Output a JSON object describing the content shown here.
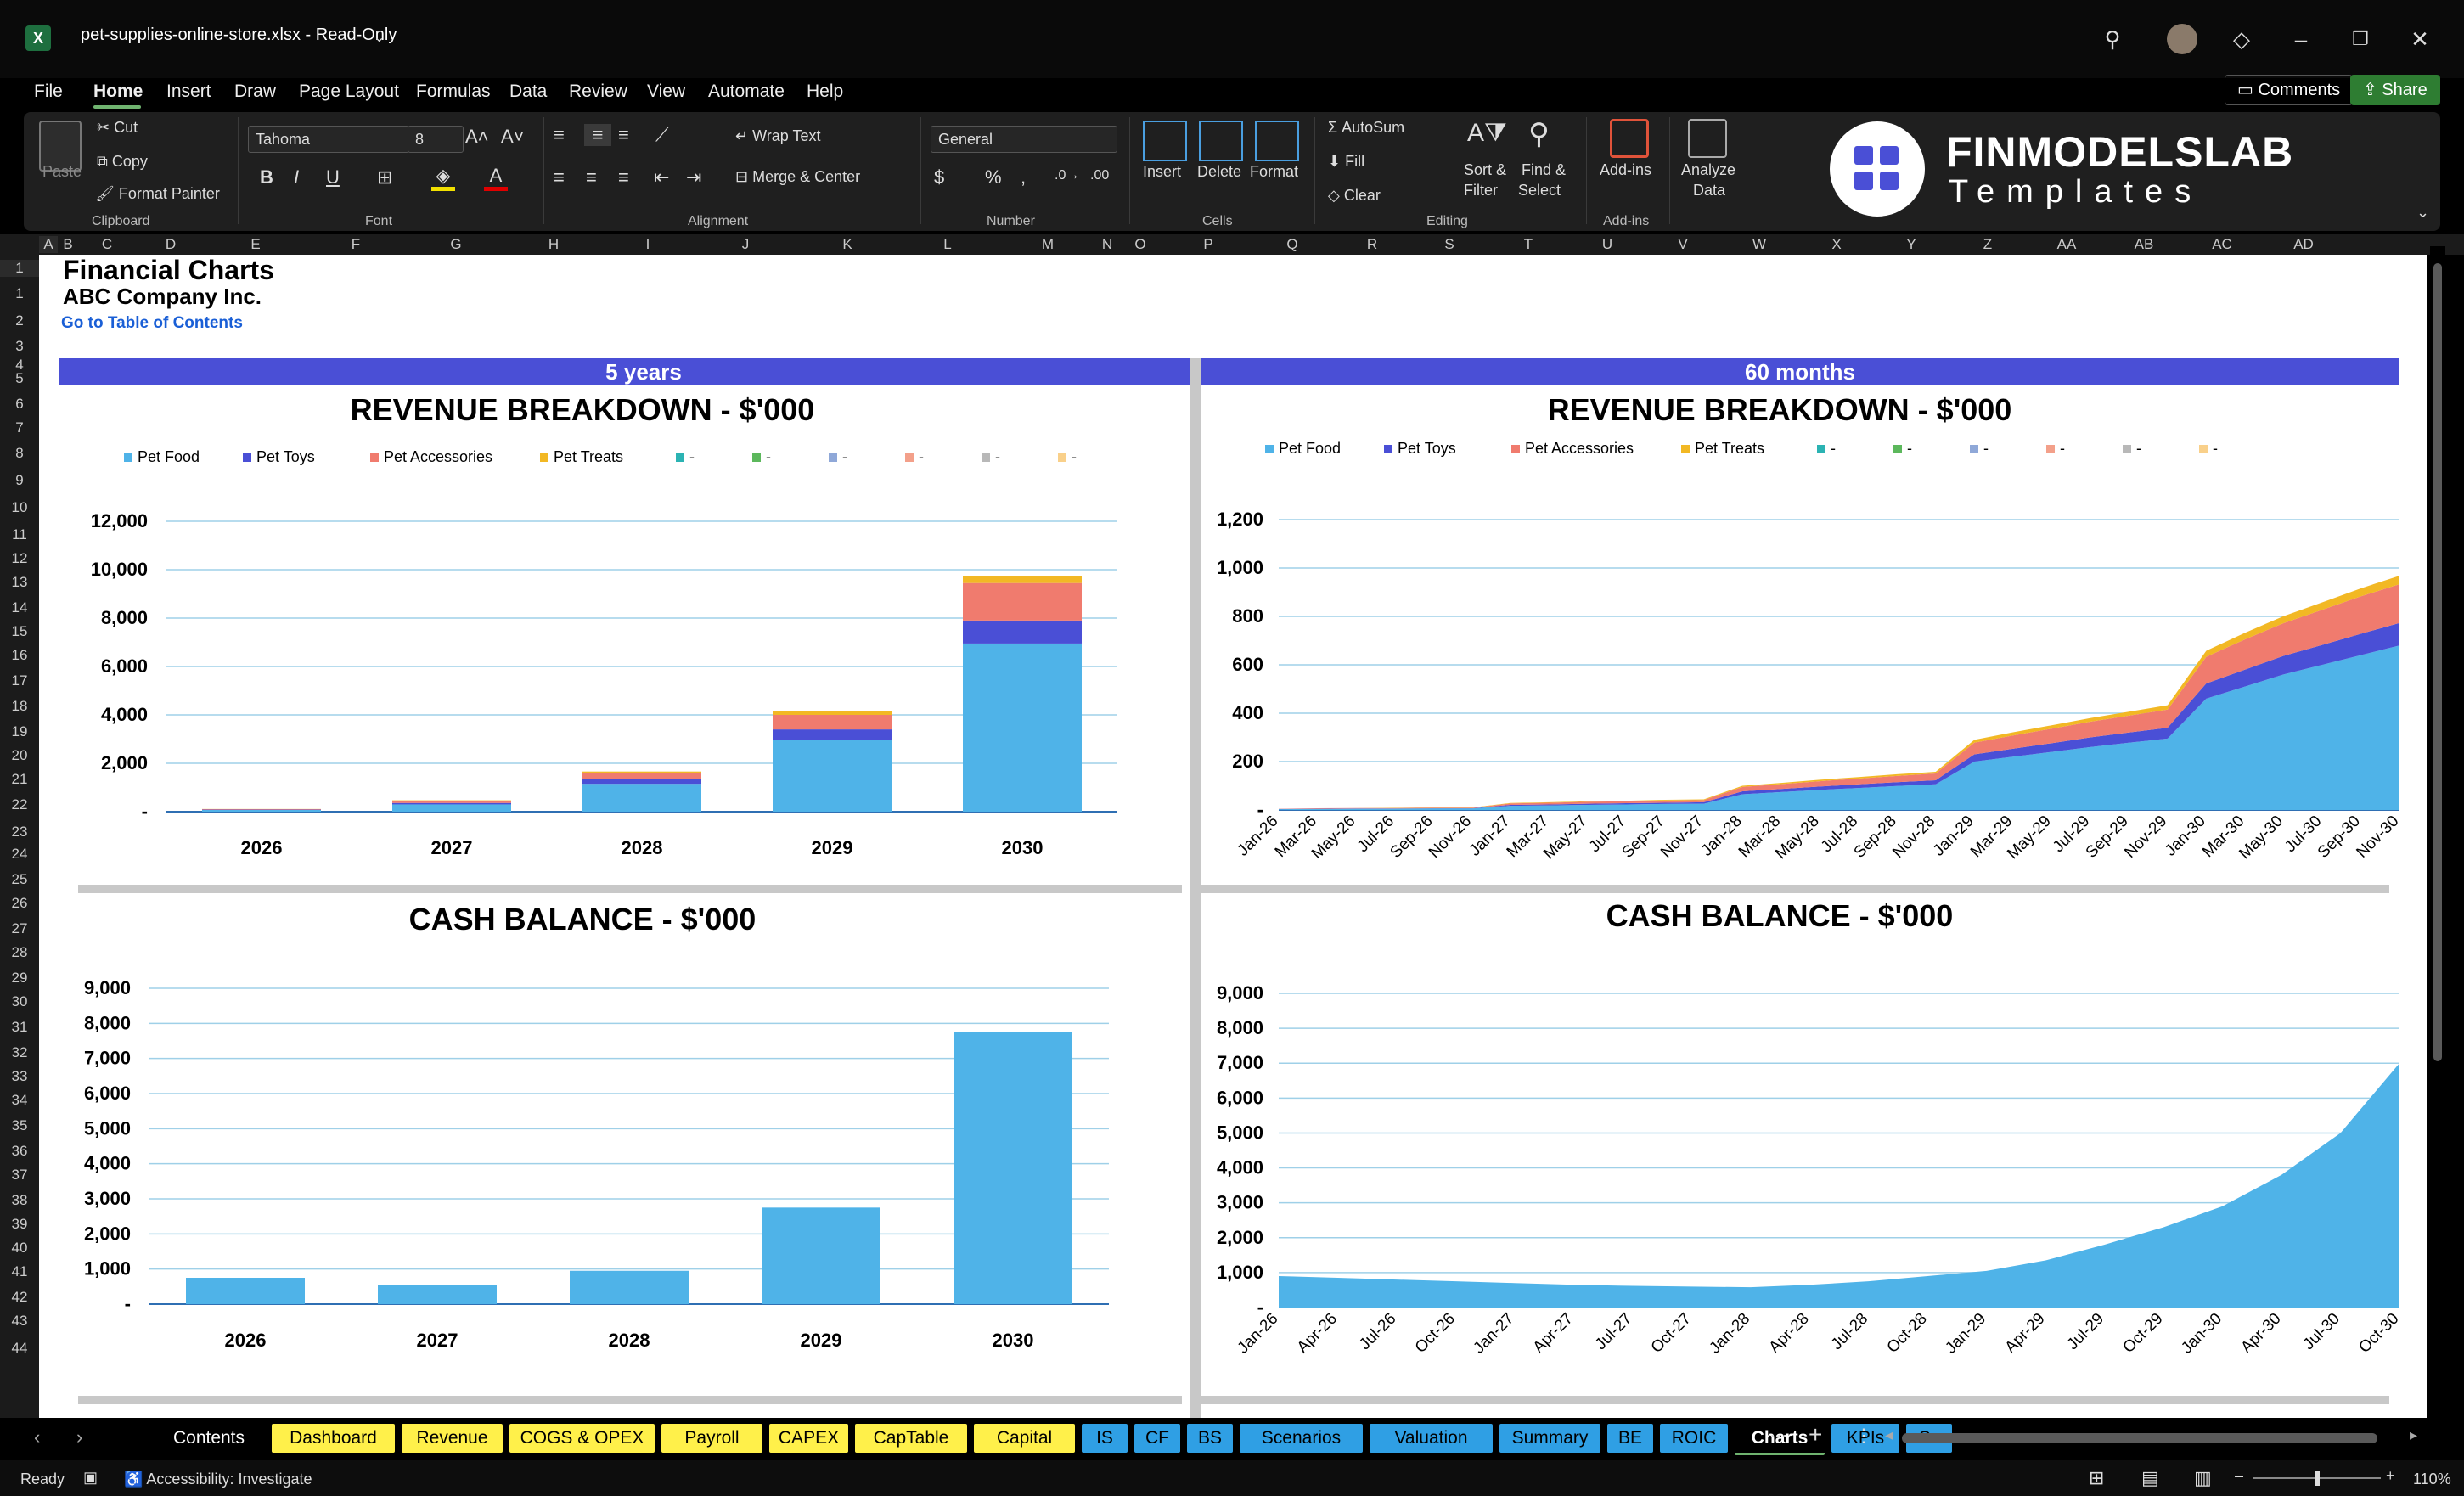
{
  "window": {
    "file_title": "pet-supplies-online-store.xlsx  -  Read-Only",
    "app_letter": "X"
  },
  "menu": {
    "items": [
      "File",
      "Home",
      "Insert",
      "Draw",
      "Page Layout",
      "Formulas",
      "Data",
      "Review",
      "View",
      "Automate",
      "Help"
    ],
    "comments": "Comments",
    "share": "Share"
  },
  "ribbon": {
    "paste": "Paste",
    "cut": "Cut",
    "copy": "Copy",
    "format_painter": "Format Painter",
    "clipboard": "Clipboard",
    "font_name": "Tahoma",
    "font_size": "8",
    "font_group": "Font",
    "wrap_text": "Wrap Text",
    "merge_center": "Merge & Center",
    "alignment_group": "Alignment",
    "number_format": "General",
    "number_group": "Number",
    "insert": "Insert",
    "delete": "Delete",
    "format": "Format",
    "cells_group": "Cells",
    "autosum": "AutoSum",
    "fill": "Fill",
    "clear": "Clear",
    "sort_filter_1": "Sort &",
    "sort_filter_2": "Filter",
    "find_select_1": "Find &",
    "find_select_2": "Select",
    "editing_group": "Editing",
    "addins": "Add-ins",
    "addins_group": "Add-ins",
    "analyze_1": "Analyze",
    "analyze_2": "Data",
    "logo_main": "FINMODELSLAB",
    "logo_sub": "Templates"
  },
  "columns": [
    "A",
    "B",
    "C",
    "D",
    "E",
    "F",
    "G",
    "H",
    "I",
    "J",
    "K",
    "L",
    "M",
    "N",
    "O",
    "P",
    "Q",
    "R",
    "S",
    "T",
    "U",
    "V",
    "W",
    "X",
    "Y",
    "Z",
    "AA",
    "AB",
    "AC",
    "AD"
  ],
  "rows": [
    "1",
    "1",
    "2",
    "3",
    "4",
    "5",
    "6",
    "7",
    "8",
    "9",
    "10",
    "11",
    "12",
    "13",
    "14",
    "15",
    "16",
    "17",
    "18",
    "19",
    "20",
    "21",
    "22",
    "23",
    "24",
    "25",
    "26",
    "27",
    "28",
    "29",
    "30",
    "31",
    "32",
    "33",
    "34",
    "35",
    "36",
    "37",
    "38",
    "39",
    "40",
    "41",
    "42",
    "43",
    "44"
  ],
  "sheet": {
    "title": "Financial Charts",
    "company": "ABC Company Inc.",
    "toc_link": "Go to Table of Contents",
    "banner_left": "5 years",
    "banner_right": "60 months"
  },
  "colors": {
    "pet_food": "#4fb3e8",
    "pet_toys": "#4a4fd6",
    "pet_accessories": "#f07b6e",
    "pet_treats": "#f2b824",
    "banner": "#4a4fd6"
  },
  "legend": {
    "entries": [
      "Pet Food",
      "Pet Toys",
      "Pet Accessories",
      "Pet Treats",
      "-",
      "-",
      "-",
      "-",
      "-",
      "-"
    ],
    "colors": [
      "#4fb3e8",
      "#4a4fd6",
      "#f07b6e",
      "#f2b824",
      "#2bb3b3",
      "#5cb85c",
      "#8fa8d8",
      "#f3a08a",
      "#b8b8b8",
      "#f9d08a"
    ]
  },
  "chart_data": [
    {
      "type": "bar",
      "stacked": true,
      "title": "REVENUE BREAKDOWN - $'000",
      "categories": [
        "2026",
        "2027",
        "2028",
        "2029",
        "2030"
      ],
      "series": [
        {
          "name": "Pet Food",
          "values": [
            70,
            300,
            1150,
            2950,
            6950
          ]
        },
        {
          "name": "Pet Toys",
          "values": [
            15,
            60,
            200,
            450,
            950
          ]
        },
        {
          "name": "Pet Accessories",
          "values": [
            20,
            90,
            250,
            600,
            1550
          ]
        },
        {
          "name": "Pet Treats",
          "values": [
            5,
            20,
            60,
            150,
            300
          ]
        }
      ],
      "ylim": [
        0,
        12000
      ],
      "yticks": [
        0,
        2000,
        4000,
        6000,
        8000,
        10000,
        12000
      ],
      "ytick_labels": [
        "-",
        "2,000",
        "4,000",
        "6,000",
        "8,000",
        "10,000",
        "12,000"
      ],
      "grid": true,
      "legend": "top"
    },
    {
      "type": "area",
      "stacked": true,
      "title": "REVENUE BREAKDOWN - $'000",
      "x_labels": [
        "Jan-26",
        "Mar-26",
        "May-26",
        "Jul-26",
        "Sep-26",
        "Nov-26",
        "Jan-27",
        "Mar-27",
        "May-27",
        "Jul-27",
        "Sep-27",
        "Nov-27",
        "Jan-28",
        "Mar-28",
        "May-28",
        "Jul-28",
        "Sep-28",
        "Nov-28",
        "Jan-29",
        "Mar-29",
        "May-29",
        "Jul-29",
        "Sep-29",
        "Nov-29",
        "Jan-30",
        "Mar-30",
        "May-30",
        "Jul-30",
        "Sep-30",
        "Nov-30"
      ],
      "series": [
        {
          "name": "Pet Food",
          "values": [
            3,
            4,
            5,
            5,
            6,
            6,
            17,
            19,
            21,
            23,
            25,
            26,
            65,
            74,
            83,
            91,
            99,
            106,
            200,
            220,
            240,
            260,
            278,
            295,
            460,
            510,
            560,
            600,
            640,
            680
          ]
        },
        {
          "name": "Pet Toys",
          "values": [
            1,
            1,
            1,
            1,
            1,
            1,
            4,
            4,
            5,
            5,
            5,
            6,
            12,
            13,
            14,
            15,
            16,
            17,
            30,
            33,
            36,
            40,
            42,
            45,
            63,
            70,
            77,
            82,
            88,
            93
          ]
        },
        {
          "name": "Pet Accessories",
          "values": [
            1,
            2,
            2,
            2,
            2,
            2,
            6,
            7,
            8,
            8,
            9,
            9,
            18,
            20,
            22,
            24,
            26,
            28,
            48,
            55,
            60,
            65,
            70,
            75,
            110,
            125,
            135,
            145,
            155,
            160
          ]
        },
        {
          "name": "Pet Treats",
          "values": [
            0,
            0,
            0,
            1,
            1,
            1,
            2,
            2,
            2,
            2,
            3,
            3,
            5,
            5,
            6,
            6,
            7,
            7,
            12,
            13,
            14,
            15,
            16,
            18,
            25,
            27,
            29,
            31,
            33,
            35
          ]
        }
      ],
      "ylim": [
        0,
        1200
      ],
      "yticks": [
        0,
        200,
        400,
        600,
        800,
        1000,
        1200
      ],
      "ytick_labels": [
        "-",
        "200",
        "400",
        "600",
        "800",
        "1,000",
        "1,200"
      ],
      "grid": true,
      "legend": "top"
    },
    {
      "type": "bar",
      "title": "CASH BALANCE - $'000",
      "categories": [
        "2026",
        "2027",
        "2028",
        "2029",
        "2030"
      ],
      "series": [
        {
          "name": "",
          "values": [
            750,
            550,
            950,
            2750,
            7750
          ]
        }
      ],
      "ylim": [
        0,
        9000
      ],
      "yticks": [
        0,
        1000,
        2000,
        3000,
        4000,
        5000,
        6000,
        7000,
        8000,
        9000
      ],
      "ytick_labels": [
        "-",
        "1,000",
        "2,000",
        "3,000",
        "4,000",
        "5,000",
        "6,000",
        "7,000",
        "8,000",
        "9,000"
      ],
      "grid": true
    },
    {
      "type": "area",
      "title": "CASH BALANCE - $'000",
      "x_labels": [
        "Jan-26",
        "Apr-26",
        "Jul-26",
        "Oct-26",
        "Jan-27",
        "Apr-27",
        "Jul-27",
        "Oct-27",
        "Jan-28",
        "Apr-28",
        "Jul-28",
        "Oct-28",
        "Jan-29",
        "Apr-29",
        "Jul-29",
        "Oct-29",
        "Jan-30",
        "Apr-30",
        "Jul-30",
        "Oct-30"
      ],
      "series": [
        {
          "name": "",
          "values": [
            900,
            850,
            800,
            750,
            700,
            650,
            620,
            600,
            580,
            650,
            750,
            900,
            1050,
            1350,
            1800,
            2300,
            2900,
            3800,
            5000,
            7000
          ]
        }
      ],
      "ylim": [
        0,
        9000
      ],
      "yticks": [
        0,
        1000,
        2000,
        3000,
        4000,
        5000,
        6000,
        7000,
        8000,
        9000
      ],
      "ytick_labels": [
        "-",
        "1,000",
        "2,000",
        "3,000",
        "4,000",
        "5,000",
        "6,000",
        "7,000",
        "8,000",
        "9,000"
      ],
      "grid": true
    }
  ],
  "tabs": [
    {
      "label": "Contents",
      "style": "plain"
    },
    {
      "label": "Dashboard",
      "style": "yellow"
    },
    {
      "label": "Revenue",
      "style": "yellow"
    },
    {
      "label": "COGS & OPEX",
      "style": "yellow"
    },
    {
      "label": "Payroll",
      "style": "yellow"
    },
    {
      "label": "CAPEX",
      "style": "yellow"
    },
    {
      "label": "CapTable",
      "style": "yellow"
    },
    {
      "label": "Capital",
      "style": "yellow"
    },
    {
      "label": "IS",
      "style": "blue"
    },
    {
      "label": "CF",
      "style": "blue"
    },
    {
      "label": "BS",
      "style": "blue"
    },
    {
      "label": "Scenarios",
      "style": "blue"
    },
    {
      "label": "Valuation",
      "style": "blue"
    },
    {
      "label": "Summary",
      "style": "blue"
    },
    {
      "label": "BE",
      "style": "blue"
    },
    {
      "label": "ROIC",
      "style": "blue"
    },
    {
      "label": "Charts",
      "style": "active"
    },
    {
      "label": "KPIs",
      "style": "blue"
    },
    {
      "label": "Sc",
      "style": "blue"
    }
  ],
  "status": {
    "ready": "Ready",
    "accessibility": "Accessibility: Investigate",
    "zoom": "110%"
  }
}
